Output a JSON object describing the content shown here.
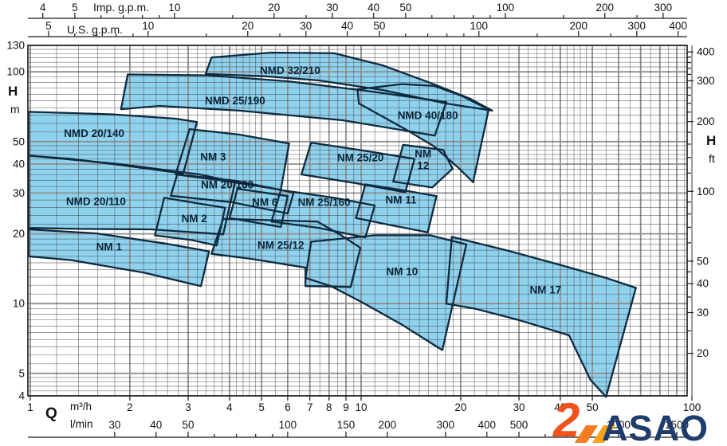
{
  "chart_data": {
    "type": "area",
    "description_kind": "pump-selection-envelope-chart",
    "q_range_m3h": [
      1,
      100
    ],
    "h_range_m": [
      4,
      130
    ],
    "grid": {
      "x_major": [
        1,
        2,
        3,
        4,
        5,
        6,
        7,
        8,
        9,
        10,
        20,
        30,
        40,
        50,
        60,
        70,
        80,
        90,
        100
      ],
      "x_minor": [
        1.2,
        1.4,
        1.6,
        1.8,
        2.2,
        2.4,
        2.6,
        2.8,
        3.2,
        3.4,
        3.6,
        3.8,
        4.2,
        4.4,
        4.6,
        4.8,
        5.5,
        6.5,
        7.5,
        8.5,
        9.5,
        11,
        12,
        13,
        14,
        15,
        16,
        17,
        18,
        19,
        22,
        24,
        26,
        28,
        32,
        34,
        36,
        38,
        42,
        44,
        46,
        48,
        55,
        65,
        75,
        85,
        95
      ],
      "y_major": [
        4,
        5,
        10,
        20,
        30,
        40,
        50,
        100,
        130
      ],
      "y_minor": [
        4.2,
        4.4,
        4.6,
        4.8,
        5.5,
        6,
        6.5,
        7,
        7.5,
        8,
        8.5,
        9,
        9.5,
        11,
        12,
        13,
        14,
        15,
        16,
        17,
        18,
        19,
        22,
        24,
        26,
        28,
        32,
        34,
        36,
        38,
        42,
        44,
        46,
        48,
        55,
        60,
        65,
        70,
        75,
        80,
        85,
        90,
        95,
        105,
        110,
        115,
        120,
        125
      ]
    },
    "axis_titles": {
      "imp": "Imp. g.p.m.",
      "us": "U.S. g.p.m.",
      "head": "H",
      "m": "m",
      "head2": "H",
      "ft": "ft",
      "q": "Q",
      "m3h": "m³/h",
      "lmin": "l/min"
    },
    "top_axis_imp": {
      "per_m3h": 3.666,
      "labeled": [
        4,
        5,
        10,
        20,
        30,
        40,
        50,
        100,
        200,
        300
      ],
      "ticks": [
        4,
        5,
        6,
        7,
        8,
        9,
        10,
        15,
        20,
        25,
        30,
        40,
        50,
        60,
        70,
        80,
        90,
        100,
        150,
        200,
        250,
        300
      ]
    },
    "top_axis_us": {
      "per_m3h": 4.403,
      "labeled": [
        5,
        10,
        20,
        30,
        40,
        50,
        100,
        200,
        300,
        400
      ],
      "ticks": [
        5,
        6,
        7,
        8,
        9,
        10,
        15,
        20,
        25,
        30,
        40,
        50,
        60,
        70,
        80,
        90,
        100,
        150,
        200,
        250,
        300,
        400
      ]
    },
    "head_axis_m": {
      "labeled": [
        4,
        5,
        10,
        20,
        30,
        40,
        50,
        100,
        130
      ]
    },
    "head_axis_ft": {
      "per_m": 3.2808,
      "labeled": [
        20,
        30,
        40,
        50,
        100,
        200,
        300,
        400
      ],
      "ticks": [
        20,
        25,
        30,
        35,
        40,
        45,
        50,
        60,
        70,
        80,
        90,
        100,
        120,
        140,
        160,
        180,
        200,
        220,
        240,
        260,
        280,
        300,
        320,
        340,
        360,
        380,
        400
      ]
    },
    "flow_axis_m3h": {
      "labeled": [
        1,
        2,
        3,
        4,
        5,
        6,
        7,
        8,
        9,
        10,
        20,
        30,
        40,
        50,
        100
      ]
    },
    "flow_axis_lmin": {
      "per_m3h": 16.667,
      "labeled": [
        30,
        40,
        50,
        100,
        150,
        200,
        300,
        400,
        500,
        1000,
        1500
      ],
      "ticks": [
        30,
        40,
        50,
        60,
        70,
        80,
        90,
        100,
        150,
        200,
        300,
        400,
        500,
        600,
        700,
        800,
        900,
        1000,
        1500
      ]
    },
    "pumps": [
      {
        "name": "NMD 20/140",
        "label_at": [
          1.56,
          54
        ],
        "envelope": [
          [
            0.98,
            67.2
          ],
          [
            1.76,
            65.6
          ],
          [
            2.75,
            62.8
          ],
          [
            3.19,
            60.8
          ],
          [
            2.9,
            36.4
          ],
          [
            1.86,
            39.7
          ],
          [
            1.33,
            42.1
          ],
          [
            0.98,
            43.5
          ]
        ]
      },
      {
        "name": "NMD 20/110",
        "label_at": [
          1.58,
          27.5
        ],
        "envelope": [
          [
            0.98,
            43.5
          ],
          [
            1.86,
            40.0
          ],
          [
            3.25,
            36.1
          ],
          [
            4.16,
            33.4
          ],
          [
            3.83,
            19.9
          ],
          [
            2.32,
            20.9
          ],
          [
            1.41,
            21.0
          ],
          [
            0.98,
            21.2
          ]
        ]
      },
      {
        "name": "NM 1",
        "label_at": [
          1.73,
          17.5
        ],
        "envelope": [
          [
            0.98,
            20.9
          ],
          [
            1.58,
            20.1
          ],
          [
            2.6,
            18.1
          ],
          [
            3.47,
            16.8
          ],
          [
            3.28,
            11.9
          ],
          [
            2.2,
            13.6
          ],
          [
            1.33,
            15.4
          ],
          [
            0.98,
            16.0
          ]
        ]
      },
      {
        "name": "NM 2",
        "label_at": [
          3.13,
          23.2
        ],
        "envelope": [
          [
            2.54,
            28.6
          ],
          [
            3.88,
            25.9
          ],
          [
            3.66,
            17.8
          ],
          [
            3.07,
            18.8
          ],
          [
            2.38,
            19.7
          ]
        ]
      },
      {
        "name": "NM 3",
        "label_at": [
          3.57,
          42.8
        ],
        "envelope": [
          [
            3.03,
            56.6
          ],
          [
            4.28,
            53.6
          ],
          [
            6.06,
            49.1
          ],
          [
            5.72,
            31.0
          ],
          [
            3.83,
            33.9
          ],
          [
            2.75,
            36.1
          ]
        ]
      },
      {
        "name": "NM 20/160",
        "label_at": [
          3.94,
          32.4
        ],
        "envelope": [
          [
            2.78,
            36.1
          ],
          [
            4.16,
            33.9
          ],
          [
            6.25,
            30.1
          ],
          [
            6.0,
            24.5
          ],
          [
            4.05,
            27.4
          ],
          [
            2.66,
            29.2
          ]
        ]
      },
      {
        "name": "NM 6",
        "label_at": [
          5.12,
          27.3
        ],
        "envelope": [
          [
            4.23,
            31.3
          ],
          [
            6.0,
            29.1
          ],
          [
            5.72,
            21.4
          ],
          [
            4.0,
            23.4
          ]
        ]
      },
      {
        "name": "NM 25/12",
        "label_at": [
          5.72,
          17.8
        ],
        "envelope": [
          [
            3.83,
            23.2
          ],
          [
            5.36,
            22.9
          ],
          [
            7.38,
            22.6
          ],
          [
            8.71,
            19.7
          ],
          [
            9.95,
            17.4
          ],
          [
            9.3,
            11.8
          ],
          [
            6.79,
            11.9
          ],
          [
            6.79,
            14.3
          ],
          [
            4.65,
            15.6
          ],
          [
            3.53,
            16.4
          ]
        ]
      },
      {
        "name": "NM 25/160",
        "label_at": [
          7.73,
          27.3
        ],
        "envelope": [
          [
            5.72,
            30.9
          ],
          [
            8.3,
            28.6
          ],
          [
            11.0,
            26.5
          ],
          [
            10.3,
            19.3
          ],
          [
            7.46,
            21.2
          ],
          [
            5.36,
            22.6
          ]
        ]
      },
      {
        "name": "NM 25/20",
        "label_at": [
          9.95,
          42.4
        ],
        "envelope": [
          [
            7.06,
            49.5
          ],
          [
            10.1,
            45.8
          ],
          [
            14.5,
            42.1
          ],
          [
            13.6,
            30.2
          ],
          [
            9.6,
            33.1
          ],
          [
            6.6,
            36.1
          ]
        ]
      },
      {
        "name": "NM 11",
        "label_at": [
          13.2,
          27.9
        ],
        "envelope": [
          [
            10.3,
            32.7
          ],
          [
            13.3,
            30.9
          ],
          [
            16.9,
            29.1
          ],
          [
            15.9,
            20.3
          ],
          [
            12.3,
            21.8
          ],
          [
            9.65,
            23.4
          ]
        ]
      },
      {
        "name": "NM 12",
        "label_lines": [
          "NM",
          "12"
        ],
        "label_at": [
          15.4,
          42.8
        ],
        "envelope": [
          [
            13.4,
            48.4
          ],
          [
            17.7,
            46.1
          ],
          [
            18.9,
            38.2
          ],
          [
            16.4,
            31.7
          ],
          [
            12.5,
            33.6
          ]
        ]
      },
      {
        "name": "NMD 25/190",
        "label_at": [
          4.16,
          74.7
        ],
        "envelope": [
          [
            1.97,
            97.4
          ],
          [
            3.43,
            96.6
          ],
          [
            6.0,
            91.1
          ],
          [
            10.4,
            82.8
          ],
          [
            18.1,
            74.1
          ],
          [
            16.7,
            53.1
          ],
          [
            8.8,
            61.8
          ],
          [
            4.28,
            68.0
          ],
          [
            2.46,
            71.3
          ],
          [
            1.88,
            69.0
          ]
        ]
      },
      {
        "name": "NMD 32/210",
        "label_at": [
          6.1,
          101
        ],
        "envelope": [
          [
            3.53,
            115.3
          ],
          [
            5.36,
            121.1
          ],
          [
            8.3,
            120.2
          ],
          [
            11.6,
            106.7
          ],
          [
            16.2,
            89.6
          ],
          [
            21.4,
            76.5
          ],
          [
            24.9,
            68.0
          ],
          [
            18.1,
            73.0
          ],
          [
            11.6,
            83.5
          ],
          [
            7.46,
            91.8
          ],
          [
            5.07,
            95.8
          ],
          [
            3.39,
            97.9
          ]
        ]
      },
      {
        "name": "NMD 40/180",
        "label_at": [
          15.9,
          64.6
        ],
        "envelope": [
          [
            9.75,
            84.1
          ],
          [
            13.3,
            88.5
          ],
          [
            16.65,
            86.9
          ],
          [
            20.2,
            78.6
          ],
          [
            24.3,
            68.8
          ],
          [
            21.8,
            33.4
          ],
          [
            19.7,
            38.5
          ],
          [
            16.65,
            47.6
          ],
          [
            13.75,
            56.1
          ],
          [
            11.5,
            64.6
          ],
          [
            9.85,
            73.0
          ]
        ]
      },
      {
        "name": "NM 10",
        "label_at": [
          13.3,
          13.7
        ],
        "envelope": [
          [
            7.06,
            18.5
          ],
          [
            11.0,
            19.7
          ],
          [
            16.2,
            19.7
          ],
          [
            20.8,
            18.0
          ],
          [
            17.6,
            6.3
          ],
          [
            13.3,
            8.1
          ],
          [
            10.1,
            10.1
          ],
          [
            8.1,
            11.9
          ],
          [
            6.79,
            12.9
          ]
        ]
      },
      {
        "name": "NM 17",
        "label_at": [
          36.1,
          11.4
        ],
        "envelope": [
          [
            18.8,
            19.4
          ],
          [
            28.3,
            16.8
          ],
          [
            40.6,
            14.6
          ],
          [
            55,
            12.9
          ],
          [
            67.7,
            11.7
          ],
          [
            55,
            3.96
          ],
          [
            49.3,
            4.7
          ],
          [
            42.5,
            7.3
          ],
          [
            29.9,
            8.5
          ],
          [
            22.2,
            9.5
          ],
          [
            18.1,
            10.0
          ]
        ]
      }
    ],
    "colors": {
      "fill": "#8FD2EE",
      "outline": "#0E2A40",
      "grid_major": "#8F8F8F",
      "grid_minor": "#3C3C3C",
      "label": "#0B2437",
      "axis_text": "#111111",
      "border": "#1A1A1A"
    }
  },
  "logo": {
    "mark": "2",
    "text": "ASAO",
    "colors": {
      "mark": "#F1511B",
      "slash1": "#F47B20",
      "slash2": "#FAA21B",
      "text": "#1E3C6C"
    }
  }
}
